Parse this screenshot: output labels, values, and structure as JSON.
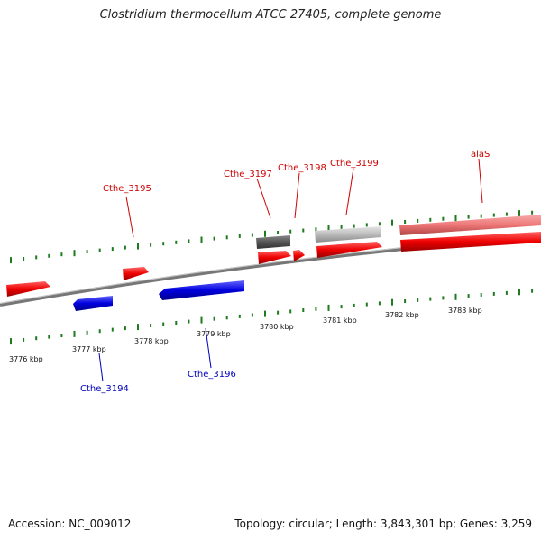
{
  "title": "Clostridium thermocellum ATCC 27405, complete genome",
  "footer": {
    "accession": "Accession: NC_009012",
    "stats": "Topology: circular; Length: 3,843,301 bp; Genes: 3,259"
  },
  "ruler": [
    "3776 kbp",
    "3777 kbp",
    "3778 kbp",
    "3779 kbp",
    "3780 kbp",
    "3781 kbp",
    "3782 kbp",
    "3783 kbp"
  ],
  "gene_labels": {
    "cthe_3194": "Cthe_3194",
    "cthe_3195": "Cthe_3195",
    "cthe_3196": "Cthe_3196",
    "cthe_3197": "Cthe_3197",
    "cthe_3198": "Cthe_3198",
    "cthe_3199": "Cthe_3199",
    "alaS": "alaS"
  },
  "colors": {
    "forward_gene": "#ee0000",
    "reverse_gene": "#0000dd",
    "rna_dark": "#555555",
    "rna_light": "#bbbbbb",
    "forward_gene_light": "#ee7777",
    "tick": "#1e7a1e",
    "label_forward": "#cc0000",
    "label_reverse": "#0000bb"
  }
}
